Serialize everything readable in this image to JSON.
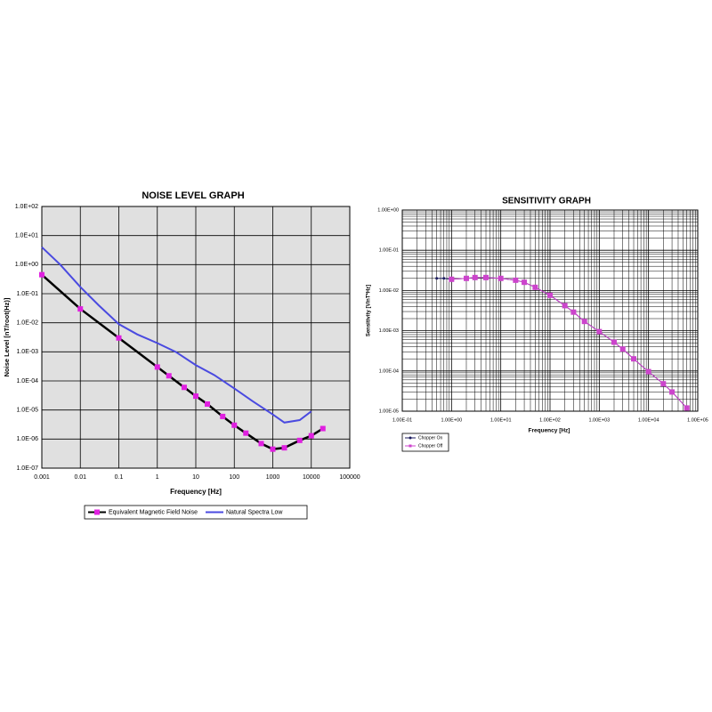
{
  "chart_data": [
    {
      "type": "line",
      "title": "NOISE LEVEL GRAPH",
      "x_label": "Frequency [Hz]",
      "y_label": "Noise Level [nT/root(Hz)]",
      "log_x": true,
      "log_y": true,
      "grid": true,
      "background": "#e0e0e0",
      "legend": "bottom",
      "xlim": [
        0.001,
        100000
      ],
      "xticks": [
        0.001,
        0.01,
        0.1,
        1,
        10,
        100,
        1000,
        10000,
        100000
      ],
      "ylim": [
        1e-07,
        100
      ],
      "yticks": [
        {
          "value": 1e-07,
          "label": "1.0E-07"
        },
        {
          "value": 1e-06,
          "label": "1.0E-06"
        },
        {
          "value": 1e-05,
          "label": "1.0E-05"
        },
        {
          "value": 0.0001,
          "label": "1.0E-04"
        },
        {
          "value": 0.001,
          "label": "1.0E-03"
        },
        {
          "value": 0.01,
          "label": "1.0E-02"
        },
        {
          "value": 0.1,
          "label": "1.0E-01"
        },
        {
          "value": 1,
          "label": "1.0E+00"
        },
        {
          "value": 10,
          "label": "1.0E+01"
        },
        {
          "value": 100,
          "label": "1.0E+02"
        }
      ],
      "series": [
        {
          "name": "Equivalent Magnetic Field Noise",
          "color": "#000000",
          "marker_color": "#e020e0",
          "marker": "square",
          "x": [
            0.001,
            0.01,
            0.1,
            1,
            2,
            5,
            10,
            20,
            50,
            100,
            200,
            500,
            1000,
            2000,
            5000,
            10000,
            20000
          ],
          "values": [
            0.45,
            0.03,
            0.003,
            0.0003,
            0.00015,
            6e-05,
            3e-05,
            1.6e-05,
            6e-06,
            3e-06,
            1.6e-06,
            7e-07,
            4.5e-07,
            5e-07,
            9e-07,
            1.3e-06,
            2.3e-06
          ]
        },
        {
          "name": "Natural Spectra Low",
          "color": "#4a4ae0",
          "x": [
            0.001,
            0.003,
            0.01,
            0.03,
            0.1,
            0.3,
            1,
            3,
            10,
            30,
            100,
            300,
            1000,
            2000,
            5000,
            10000
          ],
          "values": [
            4,
            1,
            0.17,
            0.04,
            0.009,
            0.004,
            0.002,
            0.001,
            0.00035,
            0.00016,
            5.5e-05,
            2e-05,
            7e-06,
            3.7e-06,
            4.5e-06,
            9e-06
          ]
        }
      ]
    },
    {
      "type": "line",
      "title": "SENSITIVITY GRAPH",
      "x_label": "Frequency [Hz]",
      "y_label": "Sensitivity [V/nT*Hz]",
      "log_x": true,
      "log_y": true,
      "grid": true,
      "minor_grid": true,
      "background": "#ffffff",
      "legend": "bottom-left",
      "xlim": [
        0.1,
        100000
      ],
      "xticks": [
        {
          "value": 0.1,
          "label": "1.00E-01"
        },
        {
          "value": 1,
          "label": "1.00E+00"
        },
        {
          "value": 10,
          "label": "1.00E+01"
        },
        {
          "value": 100,
          "label": "1.00E+02"
        },
        {
          "value": 1000,
          "label": "1.00E+03"
        },
        {
          "value": 10000,
          "label": "1.00E+04"
        },
        {
          "value": 100000,
          "label": "1.00E+05"
        }
      ],
      "ylim": [
        1e-05,
        1
      ],
      "yticks": [
        {
          "value": 1e-05,
          "label": "1.00E-05"
        },
        {
          "value": 0.0001,
          "label": "1.00E-04"
        },
        {
          "value": 0.001,
          "label": "1.00E-03"
        },
        {
          "value": 0.01,
          "label": "1.00E-02"
        },
        {
          "value": 0.1,
          "label": "1.00E-01"
        },
        {
          "value": 1,
          "label": "1.00E+00"
        }
      ],
      "series": [
        {
          "name": "Chopper On",
          "color": "#1a1a5e",
          "marker_color": "#1a1a5e",
          "marker": "dot",
          "x": [
            0.5,
            0.7,
            1,
            2,
            3,
            5,
            10,
            20,
            30,
            50,
            100,
            200,
            300,
            500,
            1000,
            2000,
            3000,
            5000,
            10000,
            20000,
            30000,
            60000
          ],
          "values": [
            0.02,
            0.02,
            0.019,
            0.02,
            0.021,
            0.021,
            0.02,
            0.018,
            0.016,
            0.012,
            0.0076,
            0.0042,
            0.0029,
            0.0017,
            0.00095,
            0.00052,
            0.00035,
            0.0002,
            9.6e-05,
            4.8e-05,
            3e-05,
            1.2e-05
          ]
        },
        {
          "name": "Chopper Off",
          "color": "#cc44cc",
          "marker_color": "#cc44cc",
          "marker": "square",
          "x": [
            0.5,
            0.7,
            1,
            2,
            3,
            5,
            10,
            20,
            30,
            50,
            100,
            200,
            300,
            500,
            1000,
            2000,
            3000,
            5000,
            10000,
            20000,
            30000,
            60000
          ],
          "values": [
            null,
            null,
            0.019,
            0.02,
            0.021,
            0.021,
            0.02,
            0.018,
            0.016,
            0.012,
            0.0076,
            0.0042,
            0.0029,
            0.0017,
            0.00095,
            0.00052,
            0.00035,
            0.0002,
            9.6e-05,
            4.8e-05,
            3e-05,
            1.2e-05
          ]
        }
      ]
    }
  ]
}
